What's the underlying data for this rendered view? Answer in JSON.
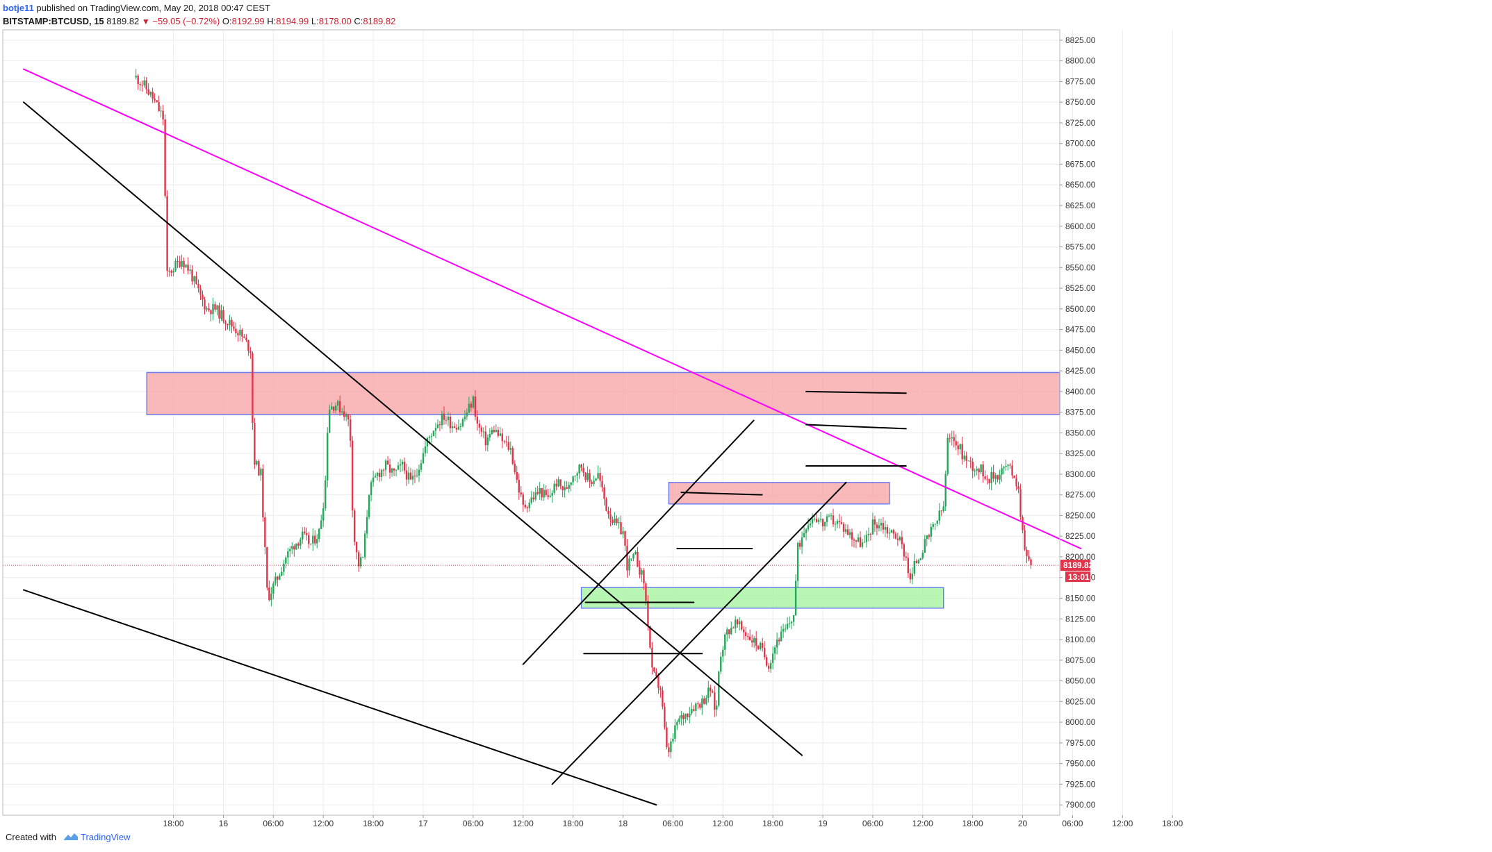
{
  "header": {
    "author": "botje11",
    "published": "published on TradingView.com, May 20, 2018 00:47 CEST",
    "symbol": "BITSTAMP:BTCUSD, 15",
    "last": "8189.82",
    "change": "−59.05 (−0.72%)",
    "o_label": "O:",
    "o": "8192.99",
    "h_label": "H:",
    "h": "8194.99",
    "l_label": "L:",
    "l": "8178.00",
    "c_label": "C:",
    "c": "8189.82"
  },
  "footer": {
    "created_with": "Created with",
    "brand": "TradingView"
  },
  "colors": {
    "up": "#26a65b",
    "down": "#e0344a",
    "trendline": "#000000",
    "channel": "#ff00ff",
    "resistance_zone": "#f7a6a8",
    "support_zone": "#a6f5a0",
    "zone_border": "#6a7ef0"
  },
  "price_tag": {
    "price": "8189.82",
    "countdown": "13:01"
  },
  "chart_data": {
    "type": "candlestick",
    "symbol": "BITSTAMP:BTCUSD",
    "interval": "15",
    "ylim": [
      7887.5,
      8837.5
    ],
    "y_ticks": [
      7900,
      7925,
      7950,
      7975,
      8000,
      8025,
      8050,
      8075,
      8100,
      8125,
      8150,
      8175,
      8200,
      8225,
      8250,
      8275,
      8300,
      8325,
      8350,
      8375,
      8400,
      8425,
      8450,
      8475,
      8500,
      8525,
      8550,
      8575,
      8600,
      8625,
      8650,
      8675,
      8700,
      8725,
      8750,
      8775,
      8800,
      8825
    ],
    "x_ticks": [
      {
        "label": "18:00",
        "t": 18
      },
      {
        "label": "16",
        "t": 24
      },
      {
        "label": "06:00",
        "t": 30
      },
      {
        "label": "12:00",
        "t": 36
      },
      {
        "label": "18:00",
        "t": 42
      },
      {
        "label": "17",
        "t": 48
      },
      {
        "label": "06:00",
        "t": 54
      },
      {
        "label": "12:00",
        "t": 60
      },
      {
        "label": "18:00",
        "t": 66
      },
      {
        "label": "18",
        "t": 72
      },
      {
        "label": "06:00",
        "t": 78
      },
      {
        "label": "12:00",
        "t": 84
      },
      {
        "label": "18:00",
        "t": 90
      },
      {
        "label": "19",
        "t": 96
      },
      {
        "label": "06:00",
        "t": 102
      },
      {
        "label": "12:00",
        "t": 108
      },
      {
        "label": "18:00",
        "t": 114
      },
      {
        "label": "20",
        "t": 120
      },
      {
        "label": "06:00",
        "t": 126
      },
      {
        "label": "12:00",
        "t": 132
      },
      {
        "label": "18:00",
        "t": 138
      }
    ],
    "last_price": 8189.82,
    "price_path": [
      [
        13.5,
        8780
      ],
      [
        14.5,
        8770
      ],
      [
        15.5,
        8755
      ],
      [
        16.8,
        8730
      ],
      [
        17.2,
        8540
      ],
      [
        18,
        8550
      ],
      [
        19,
        8560
      ],
      [
        20,
        8545
      ],
      [
        21,
        8520
      ],
      [
        22,
        8500
      ],
      [
        23,
        8500
      ],
      [
        24,
        8490
      ],
      [
        25,
        8480
      ],
      [
        26,
        8470
      ],
      [
        27.3,
        8450
      ],
      [
        27.6,
        8320
      ],
      [
        28,
        8310
      ],
      [
        28.5,
        8300
      ],
      [
        29.3,
        8150
      ],
      [
        29.8,
        8160
      ],
      [
        30.5,
        8175
      ],
      [
        31.5,
        8200
      ],
      [
        32.5,
        8215
      ],
      [
        33.5,
        8225
      ],
      [
        34.5,
        8215
      ],
      [
        35.5,
        8230
      ],
      [
        36.2,
        8280
      ],
      [
        36.6,
        8380
      ],
      [
        37.5,
        8385
      ],
      [
        38.5,
        8375
      ],
      [
        39.2,
        8360
      ],
      [
        39.6,
        8230
      ],
      [
        40.2,
        8190
      ],
      [
        40.8,
        8200
      ],
      [
        41.5,
        8280
      ],
      [
        42.5,
        8300
      ],
      [
        43.5,
        8310
      ],
      [
        44.5,
        8300
      ],
      [
        45.5,
        8310
      ],
      [
        46.5,
        8290
      ],
      [
        47.5,
        8310
      ],
      [
        48.5,
        8340
      ],
      [
        49.5,
        8360
      ],
      [
        50.5,
        8370
      ],
      [
        51.5,
        8360
      ],
      [
        52.5,
        8360
      ],
      [
        53.5,
        8380
      ],
      [
        54,
        8390
      ],
      [
        54.5,
        8360
      ],
      [
        55.5,
        8340
      ],
      [
        56.5,
        8355
      ],
      [
        57.5,
        8340
      ],
      [
        58.5,
        8330
      ],
      [
        59.3,
        8290
      ],
      [
        60,
        8260
      ],
      [
        61,
        8270
      ],
      [
        62,
        8280
      ],
      [
        63,
        8270
      ],
      [
        64,
        8290
      ],
      [
        65,
        8280
      ],
      [
        66,
        8300
      ],
      [
        67,
        8310
      ],
      [
        68,
        8290
      ],
      [
        69,
        8300
      ],
      [
        70,
        8260
      ],
      [
        71,
        8240
      ],
      [
        72,
        8230
      ],
      [
        72.5,
        8190
      ],
      [
        73.5,
        8200
      ],
      [
        74.5,
        8170
      ],
      [
        75,
        8120
      ],
      [
        75.5,
        8060
      ],
      [
        76.5,
        8040
      ],
      [
        77.3,
        7960
      ],
      [
        78,
        7980
      ],
      [
        78.5,
        8000
      ],
      [
        79.5,
        8010
      ],
      [
        80.5,
        8020
      ],
      [
        81.5,
        8025
      ],
      [
        82.5,
        8040
      ],
      [
        83.2,
        8010
      ],
      [
        83.6,
        8080
      ],
      [
        84.5,
        8110
      ],
      [
        85.5,
        8120
      ],
      [
        86.5,
        8110
      ],
      [
        87.5,
        8100
      ],
      [
        88.5,
        8090
      ],
      [
        89.5,
        8070
      ],
      [
        90.5,
        8100
      ],
      [
        91.5,
        8110
      ],
      [
        92,
        8120
      ],
      [
        92.5,
        8130
      ],
      [
        93,
        8210
      ],
      [
        94,
        8240
      ],
      [
        95,
        8250
      ],
      [
        96,
        8240
      ],
      [
        97,
        8245
      ],
      [
        98,
        8240
      ],
      [
        99,
        8230
      ],
      [
        100,
        8220
      ],
      [
        101,
        8215
      ],
      [
        102,
        8240
      ],
      [
        103,
        8240
      ],
      [
        104,
        8230
      ],
      [
        105,
        8225
      ],
      [
        106,
        8200
      ],
      [
        106.5,
        8170
      ],
      [
        107,
        8190
      ],
      [
        108,
        8210
      ],
      [
        109,
        8230
      ],
      [
        110,
        8250
      ],
      [
        110.5,
        8260
      ],
      [
        111,
        8340
      ],
      [
        112,
        8340
      ],
      [
        113,
        8320
      ],
      [
        114,
        8310
      ],
      [
        115,
        8305
      ],
      [
        116,
        8295
      ],
      [
        117,
        8300
      ],
      [
        118,
        8310
      ],
      [
        119,
        8300
      ],
      [
        119.5,
        8280
      ],
      [
        120,
        8230
      ],
      [
        120.5,
        8200
      ],
      [
        121,
        8190
      ]
    ],
    "trendlines": [
      {
        "name": "magenta-channel-line",
        "color": "magenta",
        "from": [
          0,
          8790
        ],
        "to": [
          127,
          8210
        ]
      },
      {
        "name": "upper-descending-line",
        "color": "black",
        "from": [
          0,
          8750
        ],
        "to": [
          93.5,
          7960
        ]
      },
      {
        "name": "lower-descending-line",
        "color": "black",
        "from": [
          0,
          8160
        ],
        "to": [
          76,
          7900
        ]
      },
      {
        "name": "upper-rising-channel",
        "color": "black",
        "from": [
          60,
          8070
        ],
        "to": [
          87.7,
          8365
        ]
      },
      {
        "name": "lower-rising-channel",
        "color": "black",
        "from": [
          63.5,
          7925
        ],
        "to": [
          98.8,
          8290
        ]
      },
      {
        "name": "level-8360",
        "color": "black",
        "from": [
          94,
          8360
        ],
        "to": [
          106,
          8355
        ]
      },
      {
        "name": "level-8400",
        "color": "black",
        "from": [
          94,
          8400
        ],
        "to": [
          106,
          8398
        ]
      },
      {
        "name": "level-8310",
        "color": "black",
        "from": [
          94,
          8310
        ],
        "to": [
          106,
          8310
        ]
      },
      {
        "name": "level-8278",
        "color": "black",
        "from": [
          79,
          8278
        ],
        "to": [
          88.7,
          8275
        ]
      },
      {
        "name": "level-8210",
        "color": "black",
        "from": [
          78.5,
          8210
        ],
        "to": [
          87.5,
          8210
        ]
      },
      {
        "name": "level-8145",
        "color": "black",
        "from": [
          67.5,
          8145
        ],
        "to": [
          80.5,
          8145
        ]
      },
      {
        "name": "level-8083",
        "color": "black",
        "from": [
          67.3,
          8083
        ],
        "to": [
          81.5,
          8083
        ]
      }
    ],
    "zones": [
      {
        "name": "resistance-zone",
        "type": "resistance",
        "t_start": 14.8,
        "t_end": 150,
        "y_low": 8372,
        "y_high": 8423
      },
      {
        "name": "mid-resistance-zone",
        "type": "resistance",
        "t_start": 77.5,
        "t_end": 104,
        "y_low": 8264,
        "y_high": 8290
      },
      {
        "name": "support-zone",
        "type": "support",
        "t_start": 67,
        "t_end": 110.5,
        "y_low": 8138,
        "y_high": 8163
      }
    ]
  }
}
